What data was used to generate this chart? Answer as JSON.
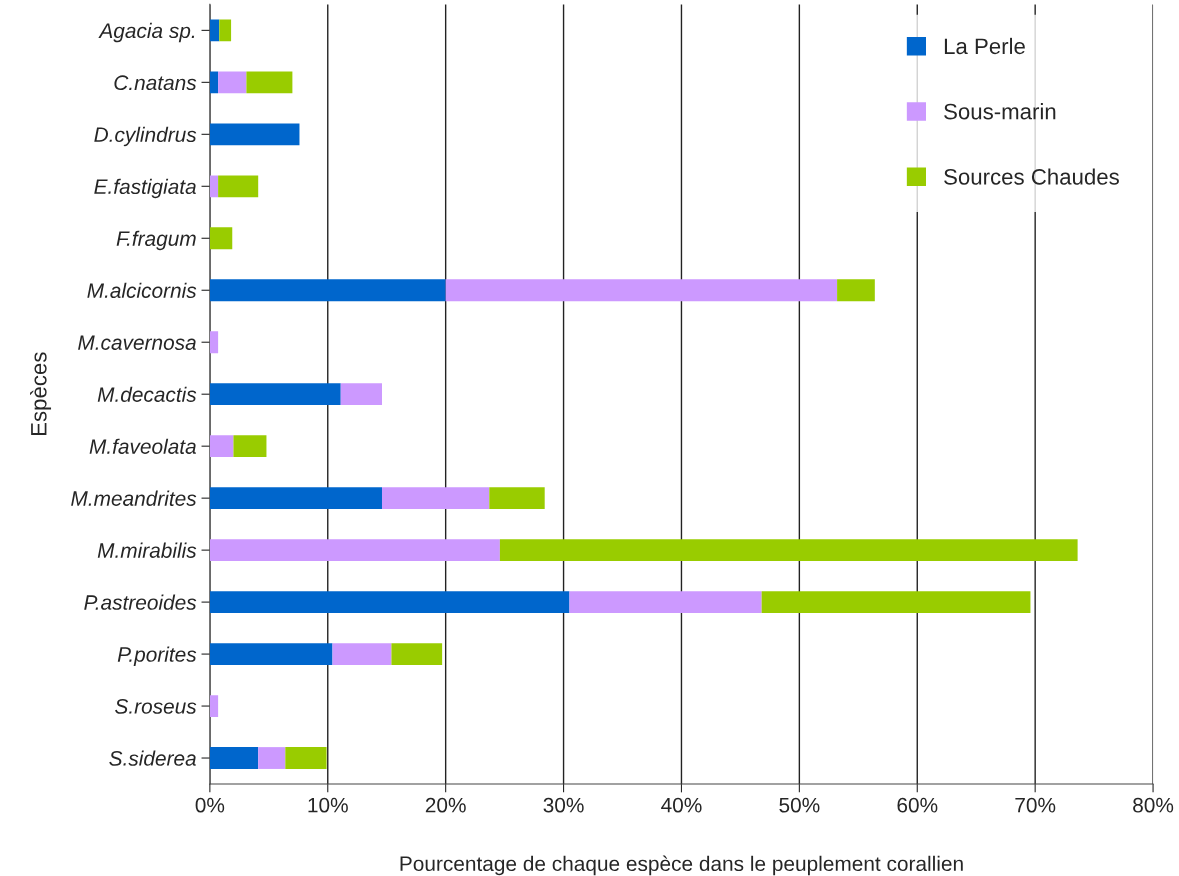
{
  "chart_data": {
    "type": "bar",
    "orientation": "horizontal",
    "stacked": true,
    "xlabel": "Pourcentage de chaque espèce dans le peuplement corallien",
    "ylabel": "Espèces",
    "categories": [
      "Agacia sp.",
      "C.natans",
      "D.cylindrus",
      "E.fastigiata",
      "F.fragum",
      "M.alcicornis",
      "M.cavernosa",
      "M.decactis",
      "M.faveolata",
      "M.meandrites",
      "M.mirabilis",
      "P.astreoides",
      "P.porites",
      "S.roseus",
      "S.siderea"
    ],
    "series": [
      {
        "name": "La Perle",
        "color": "#0066cc",
        "values": [
          0.8,
          0.7,
          7.6,
          null,
          null,
          20.0,
          null,
          11.1,
          null,
          14.6,
          null,
          30.5,
          10.4,
          null,
          4.1
        ]
      },
      {
        "name": "Sous-marin",
        "color": "#cc99ff",
        "values": [
          null,
          2.4,
          null,
          0.7,
          null,
          33.2,
          0.7,
          3.5,
          2.0,
          9.1,
          24.6,
          16.3,
          5.0,
          0.7,
          2.3
        ]
      },
      {
        "name": "Sources Chaudes",
        "color": "#99cc00",
        "values": [
          1.0,
          3.9,
          null,
          3.4,
          1.9,
          3.2,
          null,
          null,
          2.8,
          4.7,
          49.0,
          22.8,
          4.3,
          null,
          3.5
        ]
      }
    ],
    "xlim": [
      0,
      80
    ],
    "xticks": [
      {
        "value": 0,
        "label": "0%"
      },
      {
        "value": 10,
        "label": "10%"
      },
      {
        "value": 20,
        "label": "20%"
      },
      {
        "value": 30,
        "label": "30%"
      },
      {
        "value": 40,
        "label": "40%"
      },
      {
        "value": 50,
        "label": "50%"
      },
      {
        "value": 60,
        "label": "60%"
      },
      {
        "value": 70,
        "label": "70%"
      },
      {
        "value": 80,
        "label": "80%"
      }
    ],
    "grid": "x",
    "legend": "top right"
  }
}
